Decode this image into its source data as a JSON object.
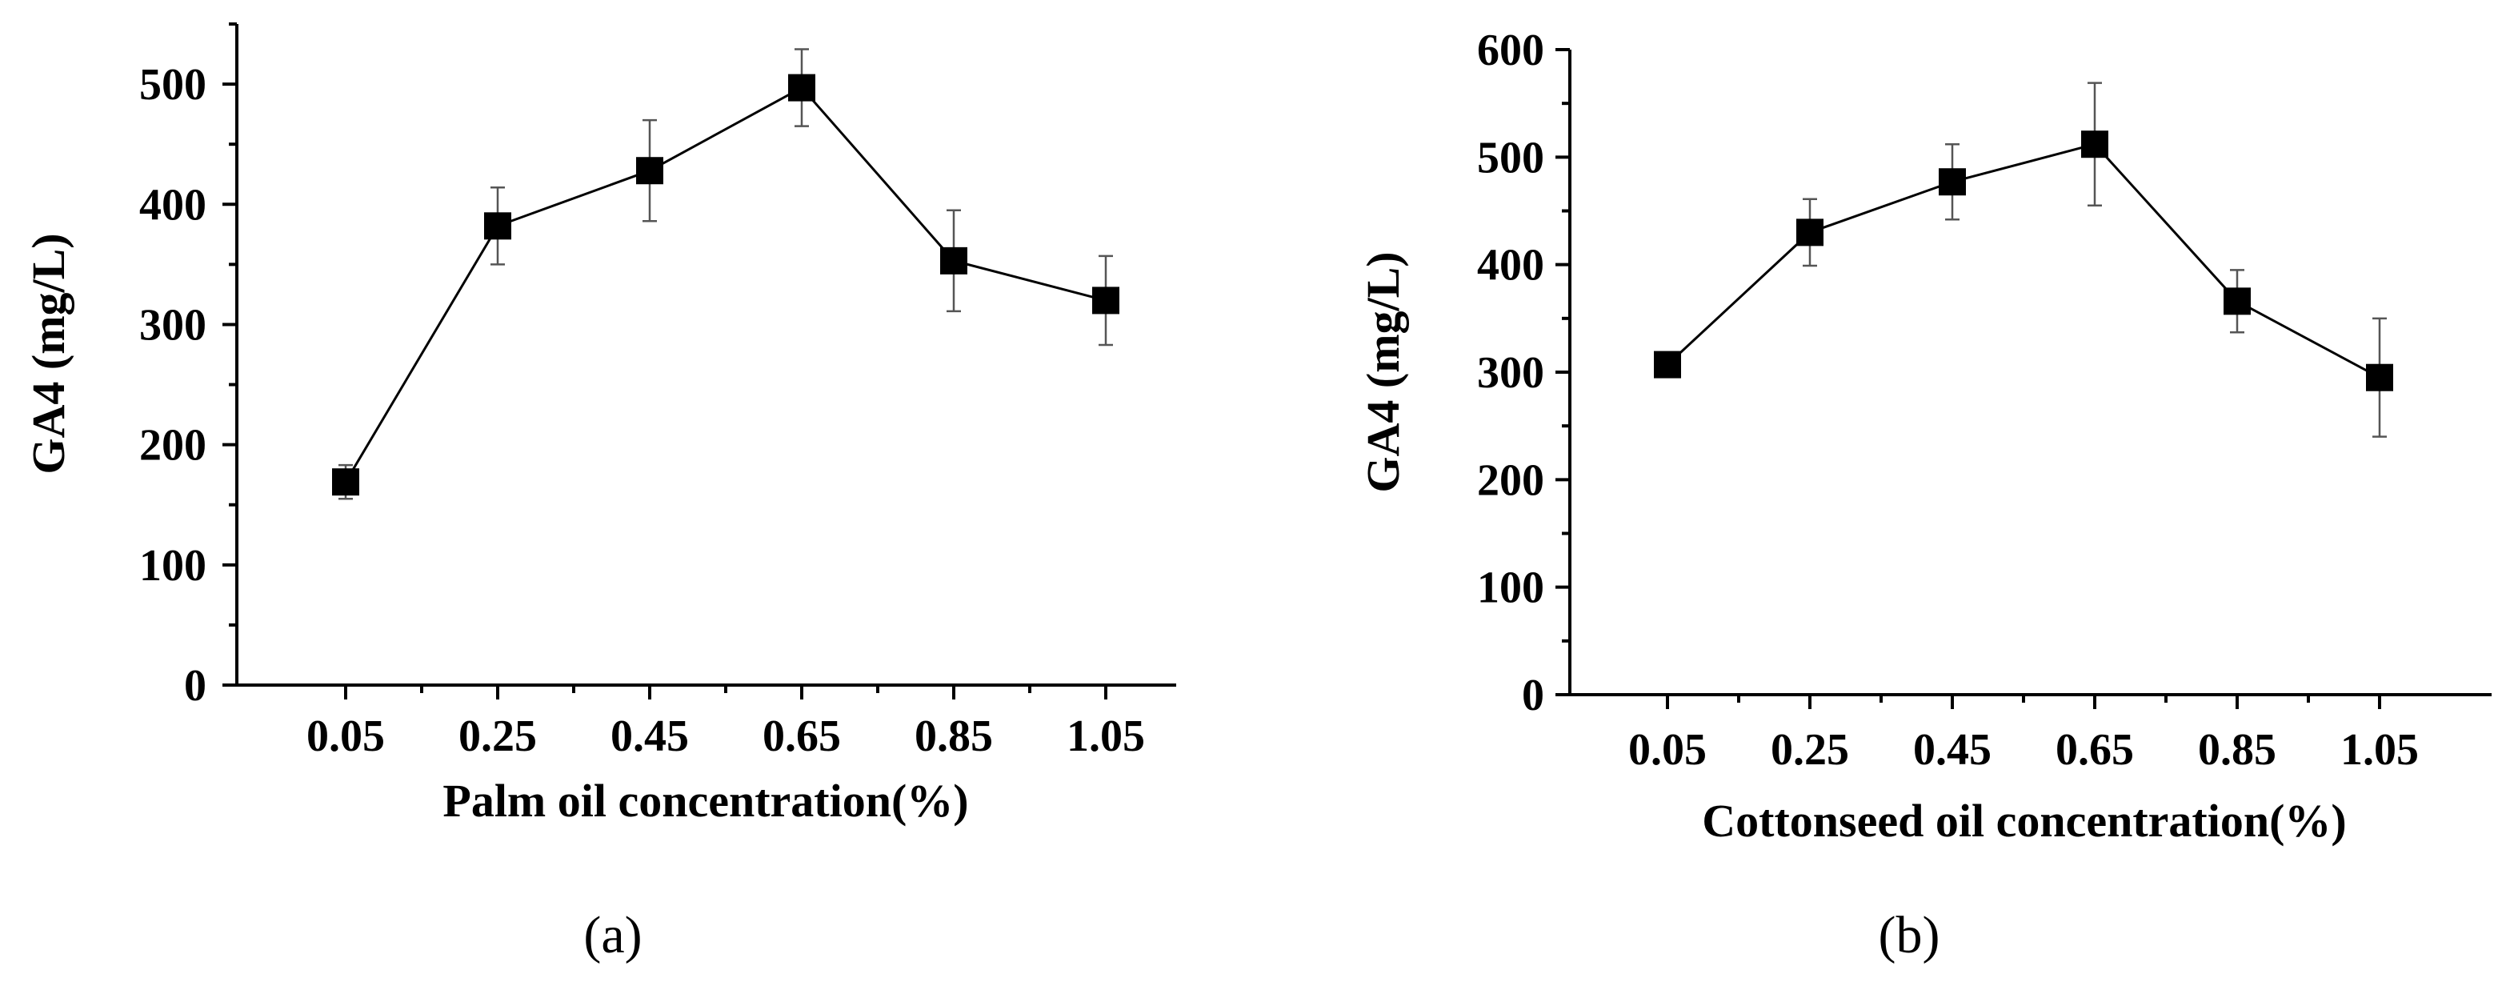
{
  "chart_data": [
    {
      "type": "line",
      "panel_label": "(a)",
      "xlabel": "Palm oil concentration(%)",
      "ylabel": "GA4 (mg/L)",
      "x": [
        "0.05",
        "0.25",
        "0.45",
        "0.65",
        "0.85",
        "1.05"
      ],
      "y_ticks": [
        "0",
        "100",
        "200",
        "300",
        "400",
        "500"
      ],
      "ylim": [
        0,
        550
      ],
      "series": [
        {
          "name": "GA4",
          "values": [
            169,
            382,
            428,
            497,
            353,
            320
          ],
          "errors": [
            14,
            32,
            42,
            32,
            42,
            37
          ]
        }
      ],
      "marker": "square",
      "grid": false
    },
    {
      "type": "line",
      "panel_label": "(b)",
      "xlabel": "Cottonseed oil concentration(%)",
      "ylabel": "GA4 (mg/L)",
      "x": [
        "0.05",
        "0.25",
        "0.45",
        "0.65",
        "0.85",
        "1.05"
      ],
      "y_ticks": [
        "0",
        "100",
        "200",
        "300",
        "400",
        "500",
        "600"
      ],
      "ylim": [
        0,
        600
      ],
      "series": [
        {
          "name": "GA4",
          "values": [
            307,
            430,
            477,
            512,
            366,
            295
          ],
          "errors": [
            8,
            31,
            35,
            57,
            29,
            55
          ]
        }
      ],
      "marker": "square",
      "grid": false
    }
  ]
}
